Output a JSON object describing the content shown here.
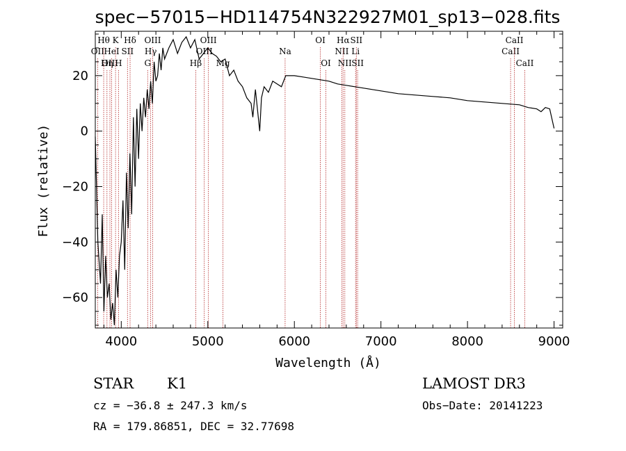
{
  "chart_data": {
    "type": "line",
    "title": "spec−57015−HD114754N322927M01_sp13−028.fits",
    "xlabel": "Wavelength (Å)",
    "ylabel": "Flux (relative)",
    "xlim": [
      3700,
      9100
    ],
    "ylim": [
      -71,
      36
    ],
    "xticks": [
      4000,
      5000,
      6000,
      7000,
      8000,
      9000
    ],
    "xtick_labels": [
      "4000",
      "5000",
      "6000",
      "7000",
      "8000",
      "9000"
    ],
    "yticks": [
      -60,
      -40,
      -20,
      0,
      20
    ],
    "ytick_labels": [
      "−60",
      "−40",
      "−20",
      "0",
      "20"
    ],
    "series": [
      {
        "name": "spectrum",
        "x": [
          3700,
          3730,
          3760,
          3780,
          3800,
          3820,
          3840,
          3860,
          3880,
          3900,
          3920,
          3940,
          3960,
          3980,
          4000,
          4020,
          4040,
          4060,
          4080,
          4100,
          4120,
          4140,
          4160,
          4180,
          4200,
          4220,
          4240,
          4260,
          4280,
          4300,
          4320,
          4340,
          4360,
          4380,
          4400,
          4420,
          4440,
          4460,
          4480,
          4500,
          4550,
          4600,
          4650,
          4700,
          4750,
          4800,
          4850,
          4900,
          4950,
          5000,
          5050,
          5100,
          5150,
          5200,
          5250,
          5300,
          5350,
          5400,
          5450,
          5500,
          5520,
          5550,
          5600,
          5620,
          5650,
          5700,
          5750,
          5800,
          5850,
          5900,
          5950,
          6000,
          6100,
          6200,
          6300,
          6400,
          6500,
          6600,
          6700,
          6800,
          6900,
          7000,
          7200,
          7400,
          7600,
          7800,
          8000,
          8200,
          8400,
          8600,
          8700,
          8800,
          8850,
          8900,
          8950,
          9000
        ],
        "y": [
          -2,
          -40,
          -55,
          -30,
          -65,
          -45,
          -60,
          -55,
          -68,
          -62,
          -70,
          -50,
          -60,
          -45,
          -40,
          -25,
          -50,
          -15,
          -35,
          -8,
          -30,
          5,
          -20,
          8,
          -10,
          10,
          0,
          12,
          5,
          15,
          8,
          18,
          10,
          25,
          18,
          20,
          28,
          22,
          30,
          26,
          30,
          33,
          28,
          32,
          34,
          30,
          33,
          26,
          28,
          30,
          28,
          27,
          25,
          26,
          20,
          22,
          18,
          16,
          12,
          10,
          5,
          15,
          0,
          12,
          16,
          14,
          18,
          17,
          16,
          20,
          20,
          20,
          19.5,
          19,
          18.5,
          18,
          17,
          16.5,
          16,
          15.5,
          15,
          14.5,
          13.5,
          13,
          12.5,
          12,
          11,
          10.5,
          10,
          9.5,
          8.5,
          8,
          7,
          8.5,
          8,
          1
        ]
      }
    ],
    "lines": [
      {
        "name": "OII",
        "x": 3727,
        "row": 2
      },
      {
        "name": "Hθ",
        "x": 3797,
        "row": 1
      },
      {
        "name": "OIII",
        "x": 3869,
        "row": 3
      },
      {
        "name": "HeI",
        "x": 3889,
        "row": 2
      },
      {
        "name": "K",
        "x": 3934,
        "row": 1
      },
      {
        "name": "Hη",
        "x": 3835,
        "row": 3
      },
      {
        "name": "H",
        "x": 3968,
        "row": 3
      },
      {
        "name": "SII",
        "x": 4072,
        "row": 2
      },
      {
        "name": "Hδ",
        "x": 4102,
        "row": 1
      },
      {
        "name": "OIII",
        "x": 4363,
        "row": 1
      },
      {
        "name": "Hγ",
        "x": 4340,
        "row": 2
      },
      {
        "name": "G",
        "x": 4305,
        "row": 3
      },
      {
        "name": "Hβ",
        "x": 4861,
        "row": 3
      },
      {
        "name": "OIII",
        "x": 4959,
        "row": 2
      },
      {
        "name": "OIII",
        "x": 5007,
        "row": 1
      },
      {
        "name": "Mg",
        "x": 5175,
        "row": 3
      },
      {
        "name": "Na",
        "x": 5893,
        "row": 2
      },
      {
        "name": "OI",
        "x": 6300,
        "row": 1
      },
      {
        "name": "OI",
        "x": 6364,
        "row": 3
      },
      {
        "name": "NII",
        "x": 6548,
        "row": 2
      },
      {
        "name": "Hα",
        "x": 6563,
        "row": 1
      },
      {
        "name": "NII",
        "x": 6583,
        "row": 3
      },
      {
        "name": "Li",
        "x": 6707,
        "row": 2
      },
      {
        "name": "SII",
        "x": 6716,
        "row": 1
      },
      {
        "name": "SII",
        "x": 6731,
        "row": 3
      },
      {
        "name": "CaII",
        "x": 8498,
        "row": 2
      },
      {
        "name": "CaII",
        "x": 8542,
        "row": 1
      },
      {
        "name": "CaII",
        "x": 8662,
        "row": 3
      }
    ]
  },
  "info": {
    "class": "STAR",
    "subclass": "K1",
    "survey": "LAMOST DR3",
    "cz": "cz = −36.8 ± 247.3 km/s",
    "obs_date": "Obs−Date: 20141223",
    "radec": "RA = 179.86851, DEC =  32.77698"
  },
  "colors": {
    "line_markers": "#b22222",
    "spectrum": "#000000"
  }
}
